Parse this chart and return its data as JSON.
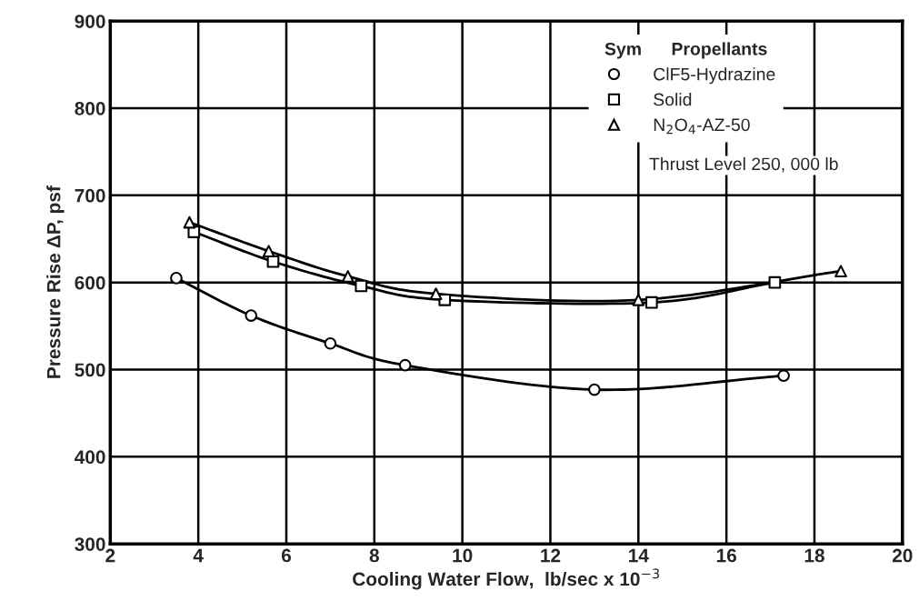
{
  "chart_data": {
    "type": "line",
    "xlabel": "Cooling Water Flow,  lb/sec x 10$^{−3}$",
    "ylabel": "Pressure Rise ΔP, psf",
    "legend_title": "Sym      Propellants",
    "legend": "top right",
    "grid": true,
    "line_style": "solid",
    "xlim": [
      2,
      20
    ],
    "xticks": [
      2,
      4,
      6,
      8,
      10,
      12,
      14,
      16,
      18,
      20
    ],
    "ylim": [
      300,
      900
    ],
    "yticks": [
      300,
      400,
      500,
      600,
      700,
      800,
      900
    ],
    "annotations": [
      "Thrust Level 250, 000 lb"
    ],
    "series": [
      {
        "name": "ClF5-Hydrazine",
        "color": "#000000",
        "marker": "circle",
        "x": [
          3.5,
          5.2,
          7.0,
          8.7,
          13.0,
          17.3
        ],
        "values": [
          605,
          562,
          530,
          505,
          477,
          493
        ]
      },
      {
        "name": "Solid",
        "color": "#000000",
        "marker": "square",
        "x": [
          3.9,
          5.7,
          7.7,
          9.6,
          14.3,
          17.1
        ],
        "values": [
          658,
          624,
          596,
          580,
          577,
          600
        ]
      },
      {
        "name": "N$_{2}$O$_{4}$-AZ-50",
        "color": "#000000",
        "marker": "triangle",
        "x": [
          3.8,
          5.6,
          7.4,
          9.4,
          14.0,
          18.6
        ],
        "values": [
          669,
          636,
          607,
          587,
          580,
          613
        ]
      }
    ]
  }
}
